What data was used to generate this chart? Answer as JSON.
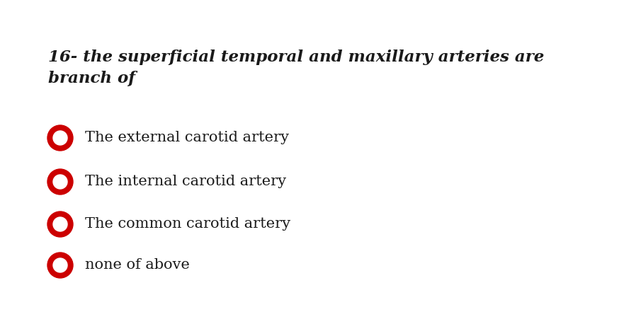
{
  "title_line1": "16- the superficial temporal and maxillary arteries are",
  "title_line2": "branch of",
  "options": [
    "The external carotid artery",
    "The internal carotid artery",
    "The common carotid artery",
    "none of above"
  ],
  "background_color": "#ffffff",
  "text_color": "#1a1a1a",
  "circle_color": "#cc0000",
  "title_fontsize": 16.5,
  "option_fontsize": 15,
  "figwidth": 8.81,
  "figheight": 4.75,
  "dpi": 100
}
